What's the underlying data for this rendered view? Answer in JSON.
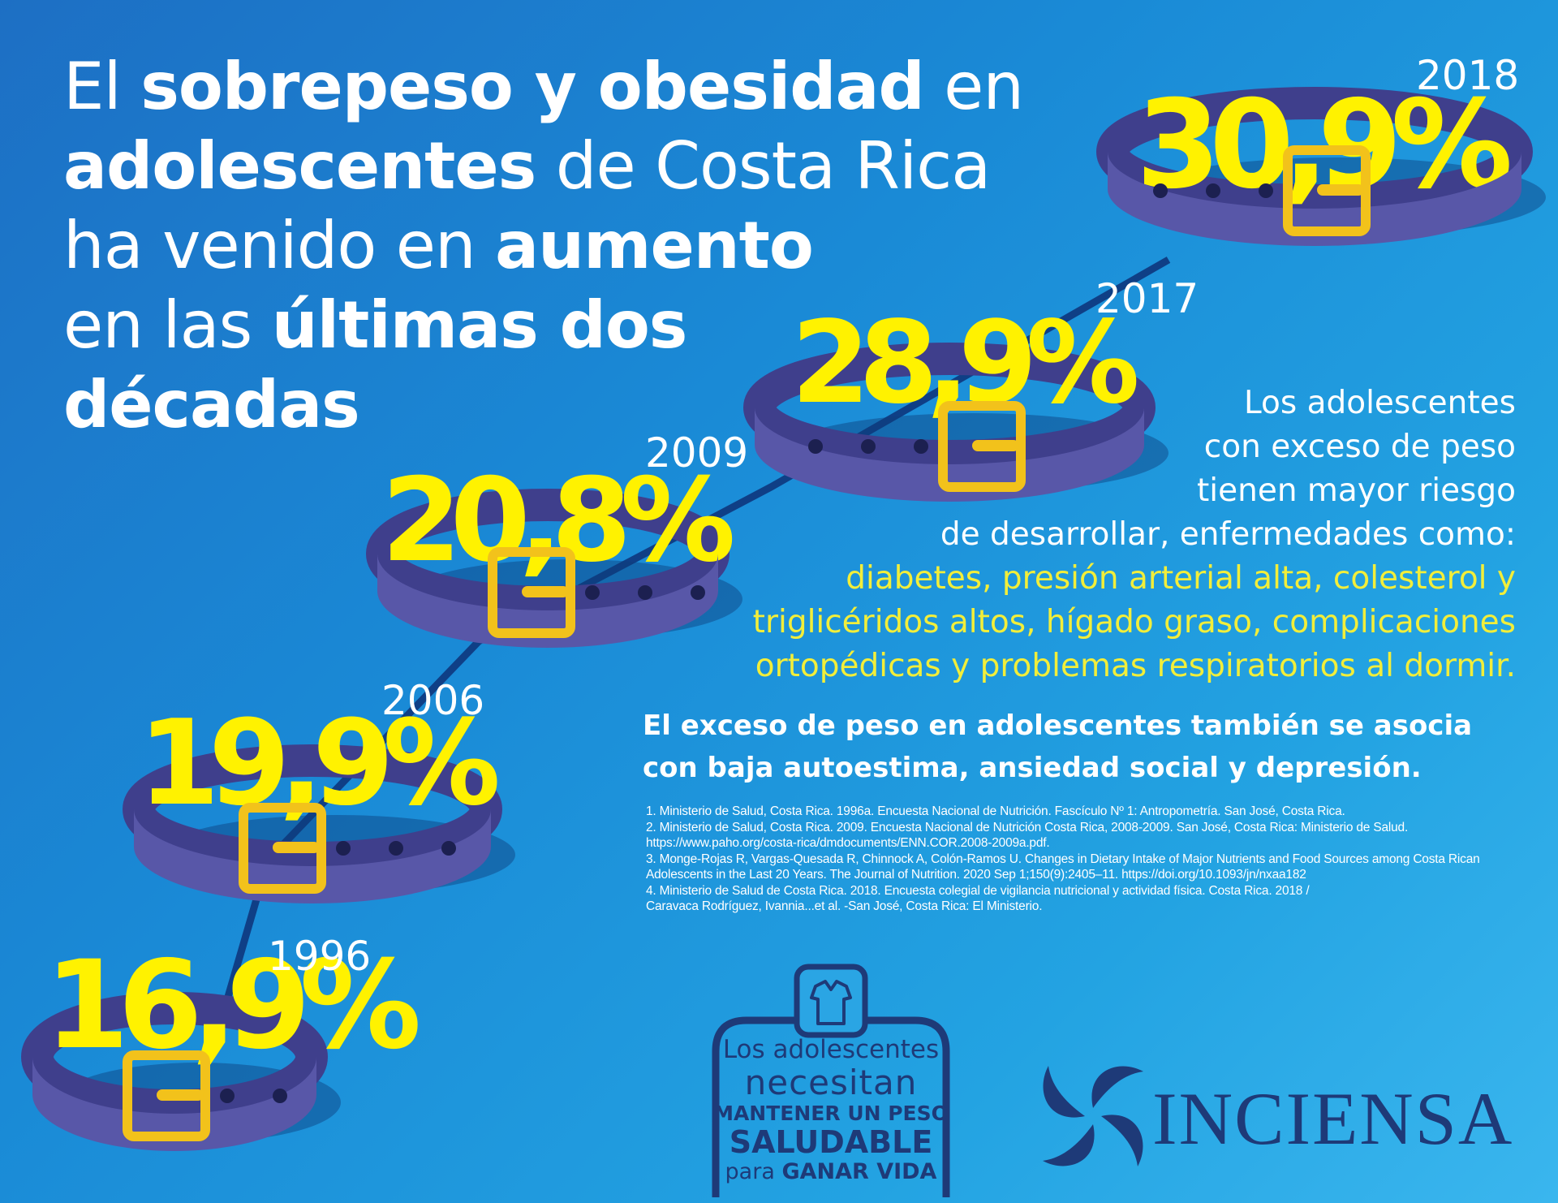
{
  "headline": {
    "l1_a": "El ",
    "l1_b": "sobrepeso y obesidad",
    "l1_c": " en",
    "l2_a": "adolescentes",
    "l2_b": " de Costa Rica",
    "l3_a": "ha venido en ",
    "l3_b": "aumento",
    "l4_a": "en las ",
    "l4_b": "últimas dos",
    "l5_a": "décadas"
  },
  "chart_data": {
    "type": "line",
    "x": [
      "1996",
      "2006",
      "2009",
      "2017",
      "2018"
    ],
    "values": [
      16.9,
      19.9,
      20.8,
      28.9,
      30.9
    ],
    "labels": [
      "16,9%",
      "19,9%",
      "20,8%",
      "28,9%",
      "30,9%"
    ]
  },
  "risk": {
    "l1": "Los adolescentes",
    "l2": "con exceso de peso",
    "l3": "tienen mayor riesgo",
    "l4": "de desarrollar, enfermedades como:",
    "l5": "diabetes, presión arterial alta, colesterol y",
    "l6": "triglicéridos altos, hígado graso, complicaciones",
    "l7": "ortopédicas y problemas respiratorios al dormir."
  },
  "assoc": {
    "l1": "El exceso de peso en adolescentes también se asocia",
    "l2": "con baja autoestima, ansiedad social y depresión."
  },
  "refs": [
    "1. Ministerio de Salud, Costa Rica. 1996a. Encuesta Nacional de Nutrición. Fascículo Nº 1: Antropometría. San José, Costa Rica.",
    "2. Ministerio de Salud, Costa Rica. 2009. Encuesta Nacional de Nutrición Costa Rica, 2008-2009. San José, Costa Rica: Ministerio de Salud.",
    "https://www.paho.org/costa-rica/dmdocuments/ENN.COR.2008-2009a.pdf.",
    "3. Monge-Rojas R, Vargas-Quesada R, Chinnock A, Colón-Ramos U. Changes in Dietary Intake of Major Nutrients and Food Sources among Costa Rican",
    "Adolescents in the Last 20 Years. The Journal of Nutrition. 2020 Sep 1;150(9):2405–11. https://doi.org/10.1093/jn/nxaa182",
    "4. Ministerio de Salud de Costa Rica. 2018. Encuesta colegial de vigilancia nutricional y actividad física. Costa Rica. 2018 /",
    "Caravaca Rodríguez, Ivannia...et al. -San José, Costa Rica: El Ministerio."
  ],
  "badge": {
    "l1": "Los adolescentes",
    "l2": "necesitan",
    "l3": "MANTENER UN PESO",
    "l4": "SALUDABLE",
    "l5_a": "para ",
    "l5_b": "GANAR VIDA"
  },
  "logo": {
    "text": "INCIENSA"
  },
  "colors": {
    "accent": "#fff200",
    "belt": "#5857a8",
    "belt_dark": "#3f3f8c",
    "buckle": "#f2c21b",
    "navy": "#1e3a78"
  }
}
